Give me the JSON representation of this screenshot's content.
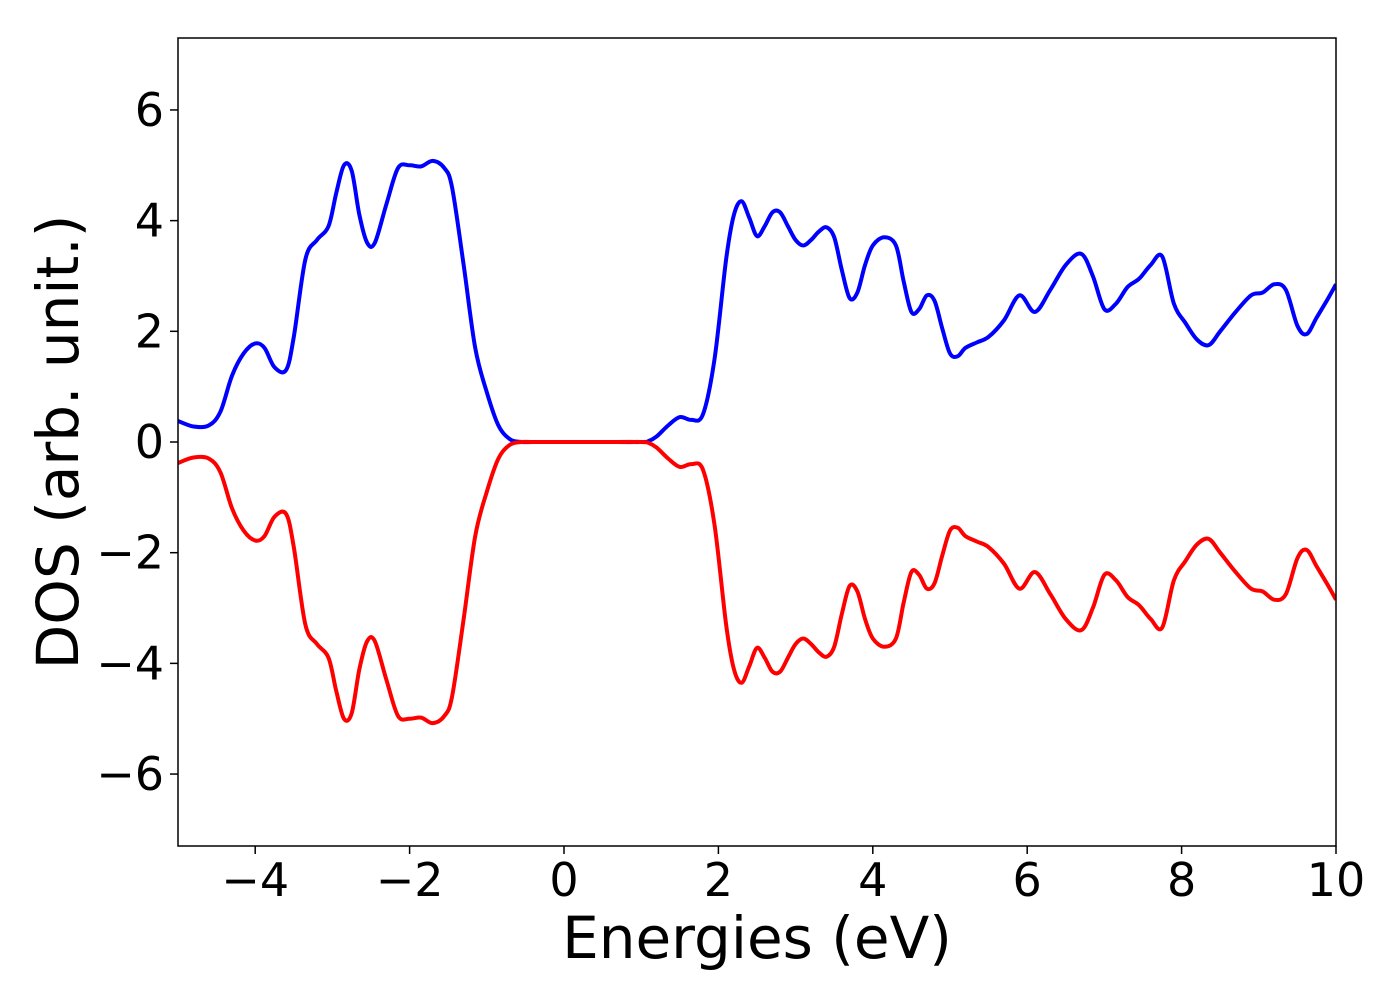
{
  "chart_data": {
    "type": "line",
    "xlabel": "Energies (eV)",
    "ylabel": "DOS (arb. unit.)",
    "xlim": [
      -5,
      10
    ],
    "ylim": [
      -7.3,
      7.3
    ],
    "xticks": [
      -4,
      -2,
      0,
      2,
      4,
      6,
      8,
      10
    ],
    "xtick_labels": [
      "−4",
      "−2",
      "0",
      "2",
      "4",
      "6",
      "8",
      "10"
    ],
    "yticks": [
      -6,
      -4,
      -2,
      0,
      2,
      4,
      6
    ],
    "ytick_labels": [
      "−6",
      "−4",
      "−2",
      "0",
      "2",
      "4",
      "6"
    ],
    "grid": false,
    "series": [
      {
        "color": "#0000ff",
        "x": [
          -5.0,
          -4.8,
          -4.6,
          -4.45,
          -4.3,
          -4.15,
          -4.0,
          -3.88,
          -3.75,
          -3.6,
          -3.5,
          -3.35,
          -3.2,
          -3.05,
          -2.95,
          -2.85,
          -2.75,
          -2.65,
          -2.55,
          -2.45,
          -2.3,
          -2.15,
          -2.0,
          -1.85,
          -1.7,
          -1.55,
          -1.45,
          -1.3,
          -1.15,
          -1.0,
          -0.85,
          -0.7,
          -0.55,
          -0.4,
          0.0,
          0.5,
          1.0,
          1.1,
          1.2,
          1.35,
          1.5,
          1.65,
          1.8,
          1.95,
          2.1,
          2.2,
          2.3,
          2.4,
          2.5,
          2.6,
          2.7,
          2.8,
          2.9,
          3.0,
          3.1,
          3.2,
          3.3,
          3.4,
          3.5,
          3.6,
          3.7,
          3.8,
          3.9,
          4.0,
          4.15,
          4.3,
          4.4,
          4.5,
          4.6,
          4.7,
          4.8,
          4.9,
          5.0,
          5.1,
          5.2,
          5.35,
          5.5,
          5.7,
          5.9,
          6.1,
          6.3,
          6.5,
          6.7,
          6.85,
          7.0,
          7.15,
          7.3,
          7.45,
          7.6,
          7.75,
          7.9,
          8.05,
          8.2,
          8.35,
          8.5,
          8.7,
          8.9,
          9.05,
          9.2,
          9.35,
          9.5,
          9.62,
          9.75,
          9.9,
          10.0
        ],
        "y": [
          0.38,
          0.28,
          0.3,
          0.55,
          1.2,
          1.6,
          1.78,
          1.7,
          1.35,
          1.3,
          1.9,
          3.3,
          3.65,
          3.9,
          4.5,
          5.0,
          4.9,
          4.1,
          3.6,
          3.6,
          4.3,
          4.95,
          5.0,
          4.98,
          5.08,
          4.95,
          4.6,
          3.2,
          1.7,
          0.9,
          0.3,
          0.05,
          0.0,
          0.0,
          0.0,
          0.0,
          0.0,
          0.02,
          0.1,
          0.3,
          0.45,
          0.4,
          0.5,
          1.5,
          3.3,
          4.1,
          4.35,
          4.05,
          3.72,
          3.9,
          4.15,
          4.15,
          3.9,
          3.65,
          3.55,
          3.65,
          3.8,
          3.88,
          3.7,
          3.1,
          2.6,
          2.7,
          3.2,
          3.55,
          3.7,
          3.55,
          2.9,
          2.35,
          2.4,
          2.65,
          2.55,
          2.05,
          1.6,
          1.55,
          1.7,
          1.8,
          1.9,
          2.2,
          2.65,
          2.35,
          2.75,
          3.2,
          3.4,
          3.0,
          2.4,
          2.5,
          2.8,
          2.95,
          3.2,
          3.35,
          2.5,
          2.15,
          1.85,
          1.75,
          2.0,
          2.35,
          2.65,
          2.7,
          2.85,
          2.75,
          2.1,
          1.95,
          2.25,
          2.6,
          2.85
        ]
      },
      {
        "color": "#ff0000",
        "x": [
          -5.0,
          -4.8,
          -4.6,
          -4.45,
          -4.3,
          -4.15,
          -4.0,
          -3.88,
          -3.75,
          -3.6,
          -3.5,
          -3.35,
          -3.2,
          -3.05,
          -2.95,
          -2.85,
          -2.75,
          -2.65,
          -2.55,
          -2.45,
          -2.3,
          -2.15,
          -2.0,
          -1.85,
          -1.7,
          -1.55,
          -1.45,
          -1.3,
          -1.15,
          -1.0,
          -0.85,
          -0.7,
          -0.55,
          -0.4,
          0.0,
          0.5,
          1.0,
          1.1,
          1.2,
          1.35,
          1.5,
          1.65,
          1.8,
          1.95,
          2.1,
          2.2,
          2.3,
          2.4,
          2.5,
          2.6,
          2.7,
          2.8,
          2.9,
          3.0,
          3.1,
          3.2,
          3.3,
          3.4,
          3.5,
          3.6,
          3.7,
          3.8,
          3.9,
          4.0,
          4.15,
          4.3,
          4.4,
          4.5,
          4.6,
          4.7,
          4.8,
          4.9,
          5.0,
          5.1,
          5.2,
          5.35,
          5.5,
          5.7,
          5.9,
          6.1,
          6.3,
          6.5,
          6.7,
          6.85,
          7.0,
          7.15,
          7.3,
          7.45,
          7.6,
          7.75,
          7.9,
          8.05,
          8.2,
          8.35,
          8.5,
          8.7,
          8.9,
          9.05,
          9.2,
          9.35,
          9.5,
          9.62,
          9.75,
          9.9,
          10.0
        ],
        "y": [
          -0.38,
          -0.28,
          -0.3,
          -0.55,
          -1.2,
          -1.6,
          -1.78,
          -1.7,
          -1.35,
          -1.3,
          -1.9,
          -3.3,
          -3.65,
          -3.9,
          -4.5,
          -5.0,
          -4.9,
          -4.1,
          -3.6,
          -3.6,
          -4.3,
          -4.95,
          -5.0,
          -4.98,
          -5.08,
          -4.95,
          -4.6,
          -3.2,
          -1.7,
          -0.9,
          -0.3,
          -0.05,
          0.0,
          0.0,
          0.0,
          0.0,
          0.0,
          -0.02,
          -0.1,
          -0.3,
          -0.45,
          -0.4,
          -0.5,
          -1.5,
          -3.3,
          -4.1,
          -4.35,
          -4.05,
          -3.72,
          -3.9,
          -4.15,
          -4.15,
          -3.9,
          -3.65,
          -3.55,
          -3.65,
          -3.8,
          -3.88,
          -3.7,
          -3.1,
          -2.6,
          -2.7,
          -3.2,
          -3.55,
          -3.7,
          -3.55,
          -2.9,
          -2.35,
          -2.4,
          -2.65,
          -2.55,
          -2.05,
          -1.6,
          -1.55,
          -1.7,
          -1.8,
          -1.9,
          -2.2,
          -2.65,
          -2.35,
          -2.75,
          -3.2,
          -3.4,
          -3.0,
          -2.4,
          -2.5,
          -2.8,
          -2.95,
          -3.2,
          -3.35,
          -2.5,
          -2.15,
          -1.85,
          -1.75,
          -2.0,
          -2.35,
          -2.65,
          -2.7,
          -2.85,
          -2.75,
          -2.1,
          -1.95,
          -2.25,
          -2.6,
          -2.85
        ]
      }
    ]
  }
}
